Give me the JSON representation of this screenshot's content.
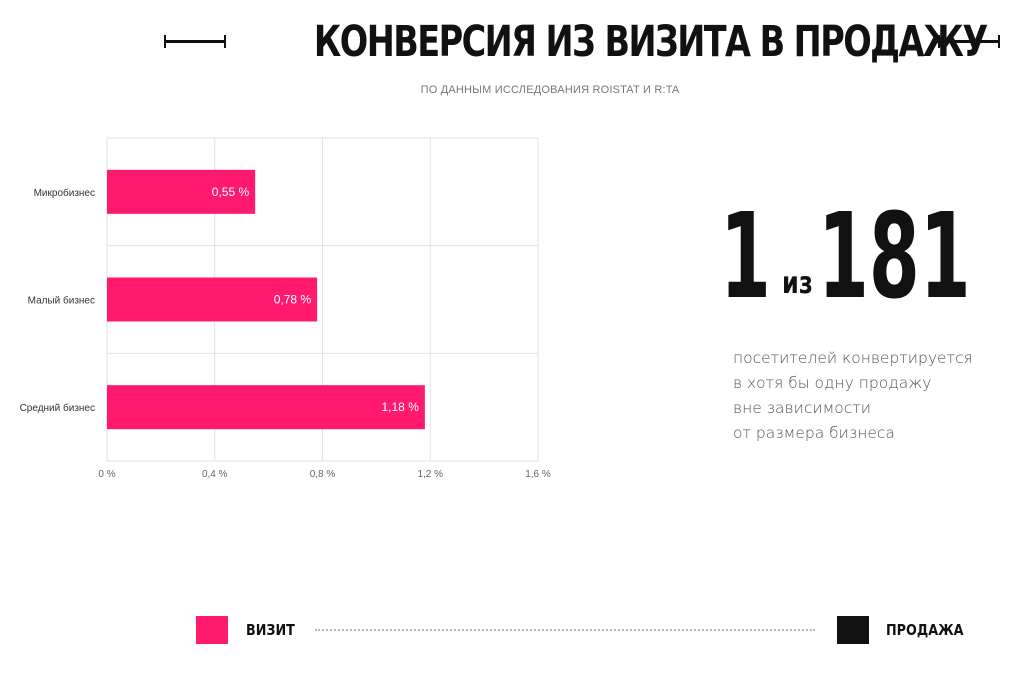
{
  "header": {
    "title": "КОНВЕРСИЯ ИЗ ВИЗИТА В ПРОДАЖУ",
    "subtitle": "ПО ДАННЫМ ИССЛЕДОВАНИЯ ROISTAT И R:TA"
  },
  "chart_data": {
    "type": "bar",
    "orientation": "horizontal",
    "categories": [
      "Микробизнес",
      "Малый бизнес",
      "Средний бизнес"
    ],
    "values": [
      0.55,
      0.78,
      1.18
    ],
    "value_labels": [
      "0,55 %",
      "0,78 %",
      "1,18 %"
    ],
    "xlim": [
      0,
      1.6
    ],
    "x_ticks": [
      0,
      0.4,
      0.8,
      1.2,
      1.6
    ],
    "x_tick_labels": [
      "0 %",
      "0,4 %",
      "0,8 %",
      "1,2 %",
      "1,6 %"
    ],
    "bar_color": "#ff1a6e",
    "grid": true
  },
  "highlight": {
    "numerator": "1",
    "connector": "из",
    "denominator": "181"
  },
  "description": {
    "lines": [
      "посетителей конвертируется",
      "в хотя бы одну продажу",
      "вне зависимости",
      "от размера бизнеса"
    ]
  },
  "legend": {
    "visit_label": "ВИЗИТ",
    "visit_color": "#ff1a6e",
    "sale_label": "ПРОДАЖА",
    "sale_color": "#111111"
  }
}
